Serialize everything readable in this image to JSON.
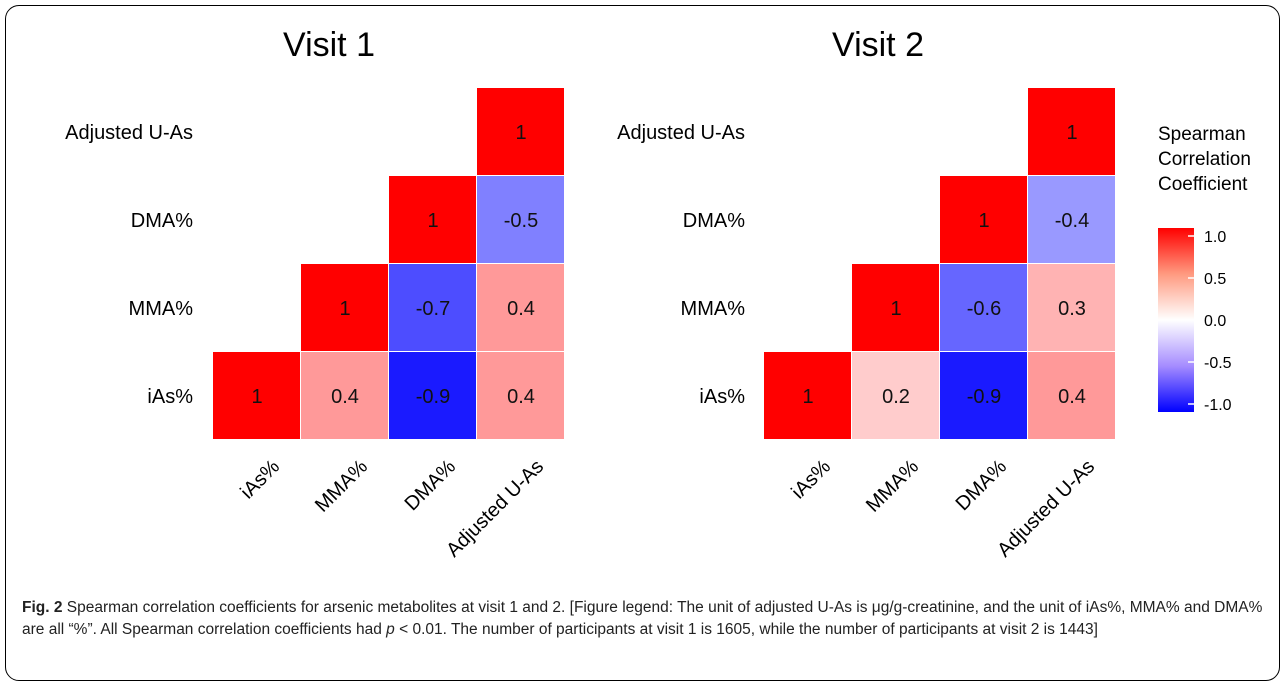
{
  "chart_data": [
    {
      "type": "heatmap",
      "title": "Visit 1",
      "rows": [
        "Adjusted U-As",
        "DMA%",
        "MMA%",
        "iAs%"
      ],
      "columns": [
        "iAs%",
        "MMA%",
        "DMA%",
        "Adjusted U-As"
      ],
      "values": [
        [
          null,
          null,
          null,
          1
        ],
        [
          null,
          null,
          1,
          -0.5
        ],
        [
          null,
          1,
          -0.7,
          0.4
        ],
        [
          1,
          0.4,
          -0.9,
          0.4
        ]
      ],
      "labels": [
        [
          null,
          null,
          null,
          "1"
        ],
        [
          null,
          null,
          "1",
          "-0.5"
        ],
        [
          null,
          "1",
          "-0.7",
          "0.4"
        ],
        [
          "1",
          "0.4",
          "-0.9",
          "0.4"
        ]
      ]
    },
    {
      "type": "heatmap",
      "title": "Visit 2",
      "rows": [
        "Adjusted U-As",
        "DMA%",
        "MMA%",
        "iAs%"
      ],
      "columns": [
        "iAs%",
        "MMA%",
        "DMA%",
        "Adjusted U-As"
      ],
      "values": [
        [
          null,
          null,
          null,
          1
        ],
        [
          null,
          null,
          1,
          -0.4
        ],
        [
          null,
          1,
          -0.6,
          0.3
        ],
        [
          1,
          0.2,
          -0.9,
          0.4
        ]
      ],
      "labels": [
        [
          null,
          null,
          null,
          "1"
        ],
        [
          null,
          null,
          "1",
          "-0.4"
        ],
        [
          null,
          "1",
          "-0.6",
          "0.3"
        ],
        [
          "1",
          "0.2",
          "-0.9",
          "0.4"
        ]
      ]
    }
  ],
  "legend": {
    "title_lines": [
      "Spearman",
      "Correlation",
      "Coefficient"
    ],
    "ticks": [
      1.0,
      0.5,
      0.0,
      -0.5,
      -1.0
    ],
    "tick_labels": [
      "1.0",
      "0.5",
      "0.0",
      "-0.5",
      "-1.0"
    ],
    "range": [
      -1,
      1
    ]
  },
  "colors": {
    "high": "#ff0000",
    "mid": "#ffffff",
    "low": "#0000ff"
  },
  "caption": {
    "label": "Fig. 2",
    "text_before_p": " Spearman correlation coefficients for arsenic metabolites at visit 1 and 2. [Figure legend: The unit of adjusted U-As is μg/g-creatinine, and the unit of iAs%, MMA% and DMA% are all “%”. All Spearman correlation coefficients had ",
    "p_symbol": "p",
    "text_after_p": " < 0.01. The number of participants at visit 1 is 1605, while the number of participants at visit 2 is 1443]"
  }
}
